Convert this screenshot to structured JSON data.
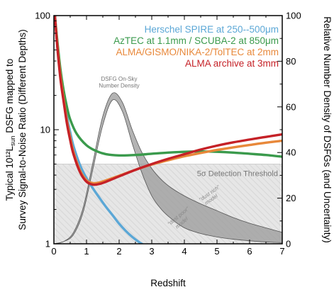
{
  "chart_data": {
    "type": "line",
    "xlabel": "Redshift",
    "ylabel_line1": "Typical 10¹²L",
    "ylabel_sub": "sun",
    "ylabel_line1_tail": " DSFG mapped to",
    "ylabel_line2": "Survey Signal-to-Noise Ratio (Different Depths)",
    "ylabel_right": "Relative Number Density of DSFGs (and Uncertainty)",
    "xlim": [
      0,
      7
    ],
    "ylim_left": [
      1,
      100
    ],
    "yscale_left": "log",
    "ylim_right": [
      0,
      100
    ],
    "x_ticks": [
      "0",
      "1",
      "2",
      "3",
      "4",
      "5",
      "6",
      "7"
    ],
    "y_ticks_left": [
      "1",
      "10",
      "100"
    ],
    "y_ticks_right": [
      "0",
      "20",
      "40",
      "60",
      "80",
      "100"
    ],
    "threshold": {
      "value": 5,
      "label": "5σ Detection Threshold"
    },
    "annotations": {
      "density_line1": "DSFG On-Sky",
      "density_line2": "Number Density",
      "dust_rich": "\"dust rich\"",
      "dust_poor": "\"dust poor\"",
      "model": "model"
    },
    "series": [
      {
        "name": "Herschel SPIRE at 250--500μm",
        "color": "#5ba7d6",
        "x": [
          0.03,
          0.1,
          0.2,
          0.3,
          0.4,
          0.5,
          0.6,
          0.8,
          1.0,
          1.2,
          1.4,
          1.6,
          1.8,
          2.0,
          2.2,
          2.4,
          2.6,
          2.75
        ],
        "y": [
          100,
          60,
          32,
          19.5,
          13,
          9.5,
          7.2,
          4.9,
          3.75,
          3.05,
          2.52,
          2.1,
          1.78,
          1.5,
          1.3,
          1.15,
          1.04,
          0.98
        ]
      },
      {
        "name": "AzTEC at 1.1mm / SCUBA-2 at 850μm",
        "color": "#3a9a4c",
        "x": [
          0.03,
          0.1,
          0.2,
          0.3,
          0.4,
          0.5,
          0.7,
          1.0,
          1.3,
          1.6,
          2.0,
          2.5,
          3.0,
          3.5,
          4.0,
          4.5,
          5.0,
          5.5,
          6.0,
          6.5,
          7.0
        ],
        "y": [
          100,
          62,
          34,
          22,
          15.8,
          12.3,
          9.2,
          7.3,
          6.5,
          6.1,
          5.95,
          6.0,
          6.15,
          6.3,
          6.4,
          6.45,
          6.4,
          6.3,
          6.15,
          6.0,
          5.8
        ]
      },
      {
        "name": "ALMA/GISMO/NIKA-2/TolTEC at 2mm",
        "color": "#e8883a",
        "x": [
          0.03,
          0.1,
          0.2,
          0.3,
          0.4,
          0.5,
          0.6,
          0.8,
          1.0,
          1.2,
          1.4,
          1.6,
          2.0,
          2.5,
          3.0,
          3.5,
          4.0,
          4.5,
          5.0,
          5.5,
          6.0,
          6.5,
          7.0
        ],
        "y": [
          100,
          58,
          30,
          18.5,
          12,
          8.6,
          6.4,
          4.4,
          3.6,
          3.4,
          3.45,
          3.6,
          3.95,
          4.45,
          4.95,
          5.4,
          5.85,
          6.25,
          6.65,
          7.0,
          7.35,
          7.7,
          8.0
        ]
      },
      {
        "name": "ALMA archive at 3mm",
        "color": "#c52127",
        "x": [
          0.03,
          0.1,
          0.2,
          0.3,
          0.4,
          0.5,
          0.6,
          0.8,
          1.0,
          1.2,
          1.4,
          1.6,
          2.0,
          2.5,
          3.0,
          3.5,
          4.0,
          4.5,
          5.0,
          5.5,
          6.0,
          6.5,
          7.0
        ],
        "y": [
          100,
          55,
          28,
          17.5,
          11.3,
          8.1,
          6.1,
          4.25,
          3.5,
          3.3,
          3.35,
          3.5,
          3.9,
          4.45,
          5.0,
          5.55,
          6.1,
          6.7,
          7.25,
          7.75,
          8.2,
          8.65,
          9.1
        ]
      }
    ],
    "density_band": {
      "color": "#888888",
      "x": [
        0.0,
        0.3,
        0.6,
        0.9,
        1.2,
        1.5,
        1.8,
        2.1,
        2.4,
        2.7,
        3.0,
        3.3,
        3.6,
        4.0,
        4.5,
        5.0,
        5.5,
        6.0,
        6.5,
        7.0
      ],
      "upper": [
        0,
        1,
        5,
        16,
        36,
        56,
        66,
        62,
        50,
        40,
        33,
        28,
        24.5,
        21,
        17.5,
        14.5,
        11.5,
        9,
        7,
        5
      ],
      "lower": [
        0,
        1,
        4,
        14,
        33,
        52,
        63,
        58,
        44,
        31,
        21,
        15,
        11,
        7,
        4.5,
        3,
        2,
        1.3,
        0.8,
        0.5
      ]
    }
  }
}
